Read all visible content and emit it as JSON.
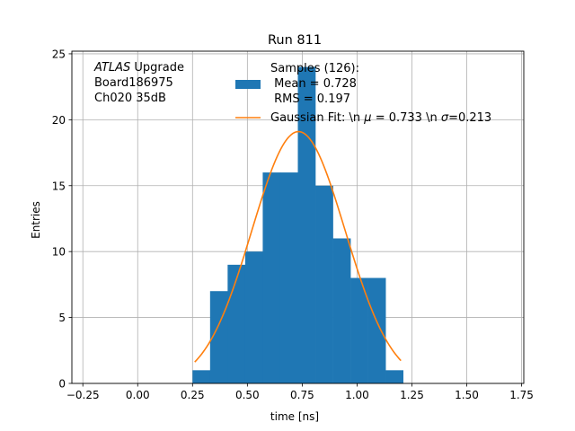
{
  "chart_data": {
    "type": "bar",
    "title": "Run 811",
    "xlabel": "time [ns]",
    "ylabel": "Entries",
    "xlim": [
      -0.3,
      1.76
    ],
    "ylim": [
      0,
      25.2
    ],
    "grid": true,
    "x_ticks": [
      -0.25,
      0.0,
      0.25,
      0.5,
      0.75,
      1.0,
      1.25,
      1.5,
      1.75
    ],
    "x_tick_labels": [
      "−0.25",
      "0.00",
      "0.25",
      "0.50",
      "0.75",
      "1.00",
      "1.25",
      "1.50",
      "1.75"
    ],
    "y_ticks": [
      0,
      5,
      10,
      15,
      20,
      25
    ],
    "y_tick_labels": [
      "0",
      "5",
      "10",
      "15",
      "20",
      "25"
    ],
    "histogram": {
      "name": "Samples (126):\n Mean = 0.728\n RMS = 0.197",
      "color": "#1f77b4",
      "bins": [
        {
          "x0": 0.25,
          "x1": 0.33,
          "count": 1
        },
        {
          "x0": 0.33,
          "x1": 0.41,
          "count": 7
        },
        {
          "x0": 0.41,
          "x1": 0.49,
          "count": 9
        },
        {
          "x0": 0.49,
          "x1": 0.57,
          "count": 10
        },
        {
          "x0": 0.57,
          "x1": 0.65,
          "count": 16
        },
        {
          "x0": 0.65,
          "x1": 0.73,
          "count": 16
        },
        {
          "x0": 0.73,
          "x1": 0.81,
          "count": 24
        },
        {
          "x0": 0.81,
          "x1": 0.89,
          "count": 15
        },
        {
          "x0": 0.89,
          "x1": 0.97,
          "count": 11
        },
        {
          "x0": 0.97,
          "x1": 1.05,
          "count": 8
        },
        {
          "x0": 1.05,
          "x1": 1.13,
          "count": 8
        },
        {
          "x0": 1.13,
          "x1": 1.21,
          "count": 1
        }
      ]
    },
    "fit": {
      "name": "Gaussian Fit: \\n $\\mu$ = 0.733 \\n $\\sigma$=0.213",
      "color": "#ff7f0e",
      "mu": 0.733,
      "sigma": 0.213,
      "amplitude": 19.1,
      "x_range": [
        0.26,
        1.2
      ]
    },
    "legend": {
      "placement": "top-right",
      "hist_label_lines": [
        "Samples (126):",
        " Mean = 0.728",
        " RMS = 0.197"
      ],
      "fit_label_lines": [
        [
          {
            "t": "Gaussian Fit: \\n ",
            "i": false
          },
          {
            "t": "μ",
            "i": true
          },
          {
            "t": " = 0.733 \\n ",
            "i": false
          },
          {
            "t": "σ",
            "i": true
          },
          {
            "t": "=0.213",
            "i": false
          }
        ]
      ]
    },
    "annotation": {
      "lines": [
        [
          {
            "t": "ATLAS",
            "i": true
          },
          {
            "t": " Upgrade",
            "i": false
          }
        ],
        [
          {
            "t": " Board186975",
            "i": false
          }
        ],
        [
          {
            "t": " Ch020 35dB",
            "i": false
          }
        ]
      ]
    }
  }
}
